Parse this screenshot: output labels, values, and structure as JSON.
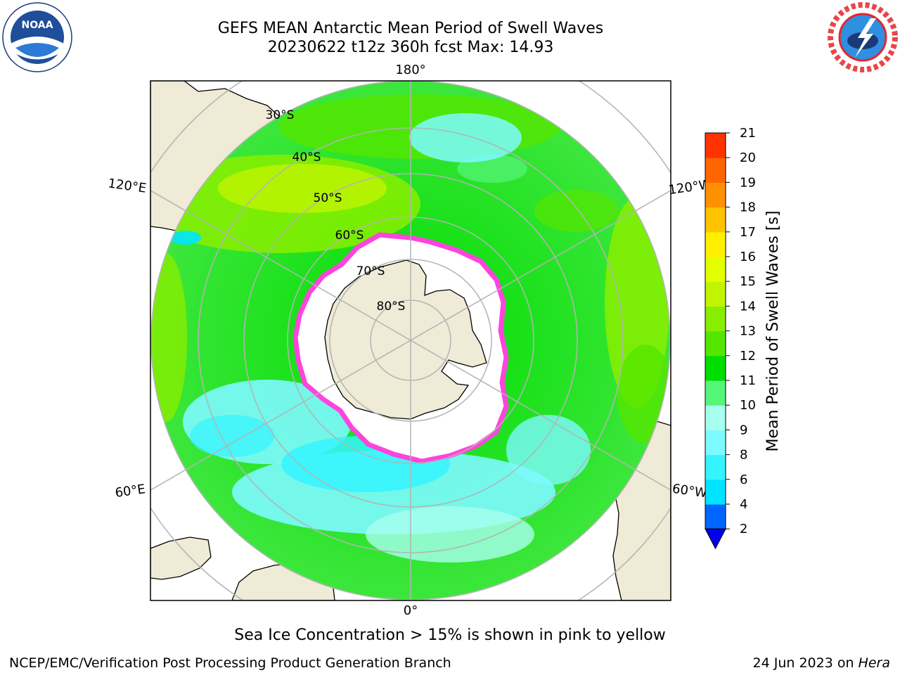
{
  "title": {
    "line1": "GEFS MEAN Antarctic Mean Period of Swell Waves",
    "line2": "20230622 t12z 360h fcst   Max: 14.93"
  },
  "map": {
    "projection": "south-polar-stereographic",
    "longitude_labels": {
      "top": "180°",
      "bottom": "0°",
      "upper_left": "120°E",
      "upper_right": "120°W",
      "lower_left": "60°E",
      "lower_right": "60°W"
    },
    "latitude_labels": [
      "30°S",
      "40°S",
      "50°S",
      "60°S",
      "70°S",
      "80°S"
    ],
    "colors": {
      "land": "#efebd7",
      "sea_ice": "#ffffff",
      "sea_ice_edge": "#ff44dd",
      "grid": "#b4b4b4"
    }
  },
  "colorbar": {
    "label": "Mean Period of Swell Waves [s]",
    "ticks": [
      "2",
      "4",
      "6",
      "8",
      "9",
      "10",
      "11",
      "12",
      "13",
      "14",
      "15",
      "16",
      "17",
      "18",
      "19",
      "20",
      "21"
    ],
    "colors": [
      "#0066ff",
      "#00e4ff",
      "#35f4ff",
      "#7dfaff",
      "#a8ffee",
      "#55f57a",
      "#00dd00",
      "#55e600",
      "#88ee00",
      "#c0f400",
      "#e4ff00",
      "#fff000",
      "#ffc300",
      "#ff9100",
      "#ff6600",
      "#ff3300",
      "#ff0000"
    ],
    "extend_color": "#0000ee"
  },
  "footer": {
    "note": "Sea Ice Concentration > 15% is shown in pink to yellow",
    "credit": "NCEP/EMC/Verification Post Processing Product Generation Branch",
    "date": "24 Jun 2023 on",
    "host": "Hera"
  },
  "logos": {
    "noaa": "NOAA",
    "nws": "NATIONAL WEATHER SERVICE"
  }
}
